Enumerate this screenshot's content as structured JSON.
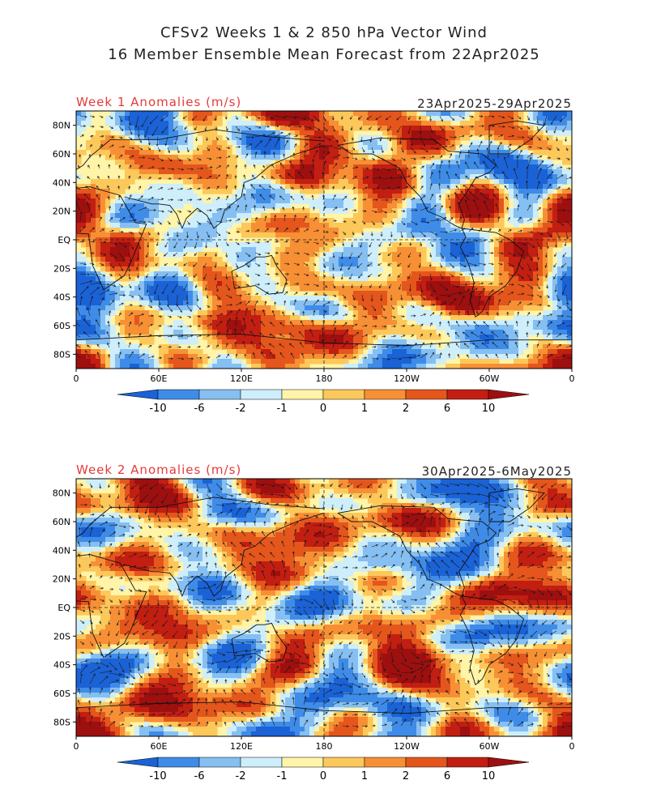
{
  "title_line1": "CFSv2 Weeks 1 & 2 850 hPa Vector Wind",
  "title_line2": "16 Member Ensemble Mean Forecast from 22Apr2025",
  "chart_data": [
    {
      "type": "heatmap",
      "title": "Week 1 Anomalies (m/s)",
      "period": "23Apr2025-29Apr2025",
      "x_ticks": [
        "0",
        "60E",
        "120E",
        "180",
        "120W",
        "60W",
        "0"
      ],
      "y_ticks": [
        "80N",
        "60N",
        "40N",
        "20N",
        "EQ",
        "20S",
        "40S",
        "60S",
        "80S"
      ],
      "xlim": [
        0,
        360
      ],
      "ylim": [
        -90,
        90
      ],
      "colorbar_levels": [
        "-10",
        "-6",
        "-2",
        "-1",
        "0",
        "1",
        "2",
        "6",
        "10"
      ],
      "colorbar_colors": [
        "#1a62d6",
        "#3f8ce8",
        "#86bff2",
        "#cdeefa",
        "#fff4a8",
        "#fcc85a",
        "#f79035",
        "#e4561c",
        "#c21e12",
        "#9e0f0f"
      ]
    },
    {
      "type": "heatmap",
      "title": "Week 2 Anomalies (m/s)",
      "period": "30Apr2025-6May2025",
      "x_ticks": [
        "0",
        "60E",
        "120E",
        "180",
        "120W",
        "60W",
        "0"
      ],
      "y_ticks": [
        "80N",
        "60N",
        "40N",
        "20N",
        "EQ",
        "20S",
        "40S",
        "60S",
        "80S"
      ],
      "xlim": [
        0,
        360
      ],
      "ylim": [
        -90,
        90
      ],
      "colorbar_levels": [
        "-10",
        "-6",
        "-2",
        "-1",
        "0",
        "1",
        "2",
        "6",
        "10"
      ],
      "colorbar_colors": [
        "#1a62d6",
        "#3f8ce8",
        "#86bff2",
        "#cdeefa",
        "#fff4a8",
        "#fcc85a",
        "#f79035",
        "#e4561c",
        "#c21e12",
        "#9e0f0f"
      ]
    }
  ]
}
